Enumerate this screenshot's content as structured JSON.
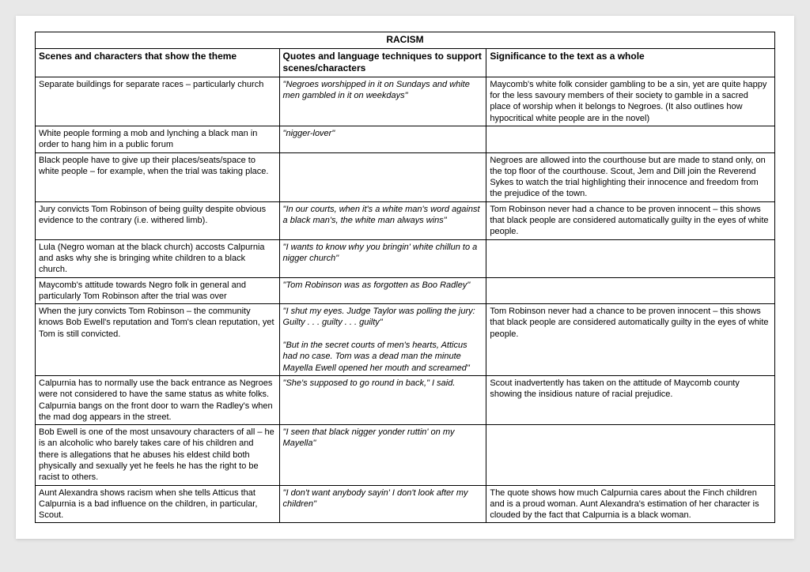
{
  "title": "RACISM",
  "headers": {
    "col1": "Scenes and characters that show the theme",
    "col2": "Quotes and language techniques to support scenes/characters",
    "col3": "Significance to the text as a whole"
  },
  "rows": [
    {
      "scene": "Separate buildings for separate races – particularly church",
      "quote": "\"Negroes worshipped in it on Sundays and white men gambled in it on weekdays\"",
      "sig": "Maycomb's white folk consider gambling to be a sin, yet are quite happy for the less savoury members of their society to gamble in a sacred place of worship when it belongs to Negroes. (It also outlines how hypocritical white people are in the novel)"
    },
    {
      "scene": "White people forming a mob and lynching a black man in order to hang him in a public forum",
      "quote": "\"nigger-lover\"",
      "sig": ""
    },
    {
      "scene": "Black people have to give up their places/seats/space to white people – for example, when the trial was taking place.",
      "quote": "",
      "sig": "Negroes are allowed into the courthouse but are made to stand only, on the top floor of the courthouse.  Scout, Jem and Dill join the Reverend Sykes to watch the trial highlighting their innocence and freedom from the prejudice of the town."
    },
    {
      "scene": "Jury convicts Tom Robinson of being guilty despite obvious evidence to the contrary (i.e. withered limb).",
      "quote": "\"In our courts, when it's a white man's word against a black man's, the white man always wins\"",
      "sig": "Tom Robinson never had a chance to be proven innocent – this shows that black people are considered automatically guilty in the eyes of white people."
    },
    {
      "scene": "Lula (Negro woman at the black church) accosts Calpurnia and asks why she is bringing white children to a black church.",
      "quote": "\"I wants to know why you bringin' white chillun to a nigger church\"",
      "sig": ""
    },
    {
      "scene": "Maycomb's attitude towards Negro folk in general and particularly Tom Robinson after the trial was over",
      "quote": "\"Tom Robinson was as forgotten as Boo Radley\"",
      "sig": ""
    },
    {
      "scene": "When the jury convicts Tom Robinson – the community knows Bob Ewell's reputation and Tom's clean reputation, yet Tom is still convicted.",
      "quote": "\"I shut my eyes.  Judge Taylor was polling the jury: Guilty . . . guilty . . . guilty\"\n\n\"But in the secret courts of men's hearts, Atticus had no case.  Tom was a dead man the minute Mayella Ewell opened her mouth and screamed\"",
      "sig": "Tom Robinson never had a chance to be proven innocent – this shows that black people are considered automatically guilty in the eyes of white people."
    },
    {
      "scene": "Calpurnia has to normally use the back entrance as Negroes were not considered to have the same status as white folks.  Calpurnia bangs on the front door to warn the Radley's when the mad dog appears in the street.",
      "quote": "\"She's supposed to go round in back,\" I said.",
      "sig": "Scout inadvertently has taken on the attitude of Maycomb county showing the insidious nature of racial prejudice."
    },
    {
      "scene": "Bob Ewell is one of the most unsavoury characters of all – he is an alcoholic who barely takes care of his children and there is allegations that he abuses his eldest child both physically and sexually yet he feels he has the right to be racist to others.",
      "quote": "\"I seen that black nigger yonder ruttin' on my Mayella\"",
      "sig": ""
    },
    {
      "scene": "Aunt Alexandra shows racism when she tells Atticus that Calpurnia is a bad influence on the children, in particular, Scout.",
      "quote": "\"I don't want anybody sayin' I don't look after my children\"",
      "sig": "The quote shows how much Calpurnia cares about the Finch children and is a proud woman.  Aunt Alexandra's estimation of her character is clouded by the fact that Calpurnia is a black woman."
    }
  ]
}
